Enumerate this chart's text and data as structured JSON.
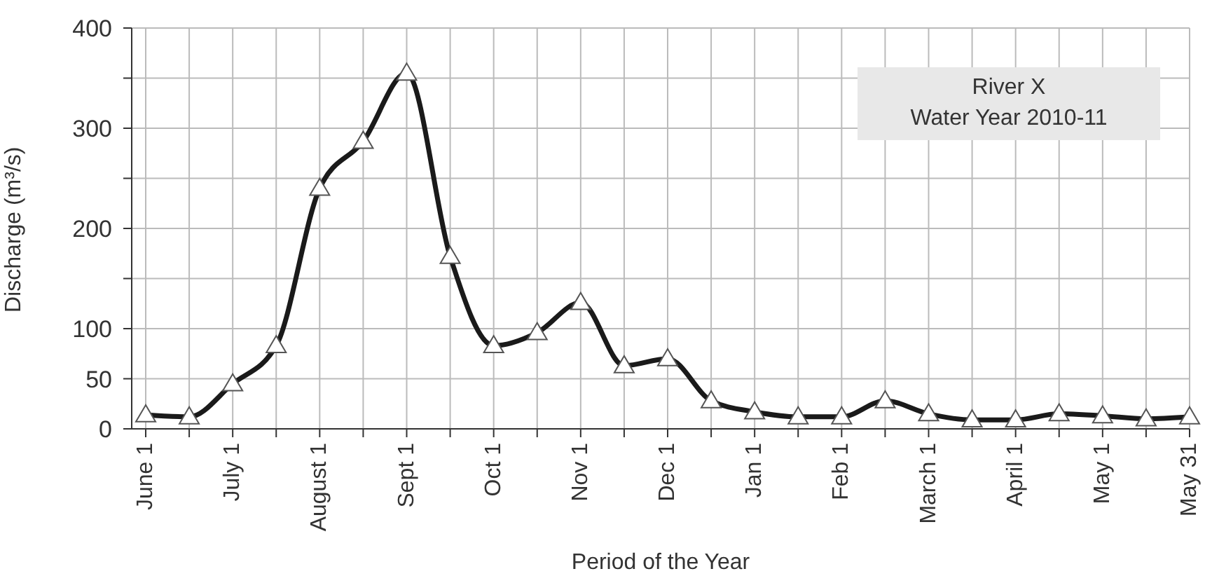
{
  "chart_data": {
    "type": "line",
    "xlabel": "Period of the Year",
    "ylabel": "Discharge (m³/s)",
    "annotations": [
      "River X",
      "Water Year 2010-11"
    ],
    "categories": [
      "June 1",
      null,
      "July 1",
      null,
      "August 1",
      null,
      "Sept 1",
      null,
      "Oct 1",
      null,
      "Nov 1",
      null,
      "Dec 1",
      null,
      "Jan 1",
      null,
      "Feb 1",
      null,
      "March 1",
      null,
      "April 1",
      null,
      "May 1",
      null,
      "May 31"
    ],
    "series": [
      {
        "color": "#1a1a1a",
        "values": [
          14,
          12,
          45,
          83,
          240,
          287,
          355,
          172,
          83,
          96,
          126,
          63,
          70,
          28,
          17,
          12,
          12,
          28,
          15,
          9,
          9,
          15,
          13,
          10,
          12
        ]
      }
    ],
    "ylim": [
      0,
      400
    ],
    "yticks": [
      0,
      50,
      100,
      {
        "value": 150,
        "label": null
      },
      200,
      {
        "value": 250,
        "label": null
      },
      300,
      {
        "value": 350,
        "label": null
      },
      400
    ],
    "grid": true,
    "marker": "triangle",
    "line_style": "solid"
  }
}
